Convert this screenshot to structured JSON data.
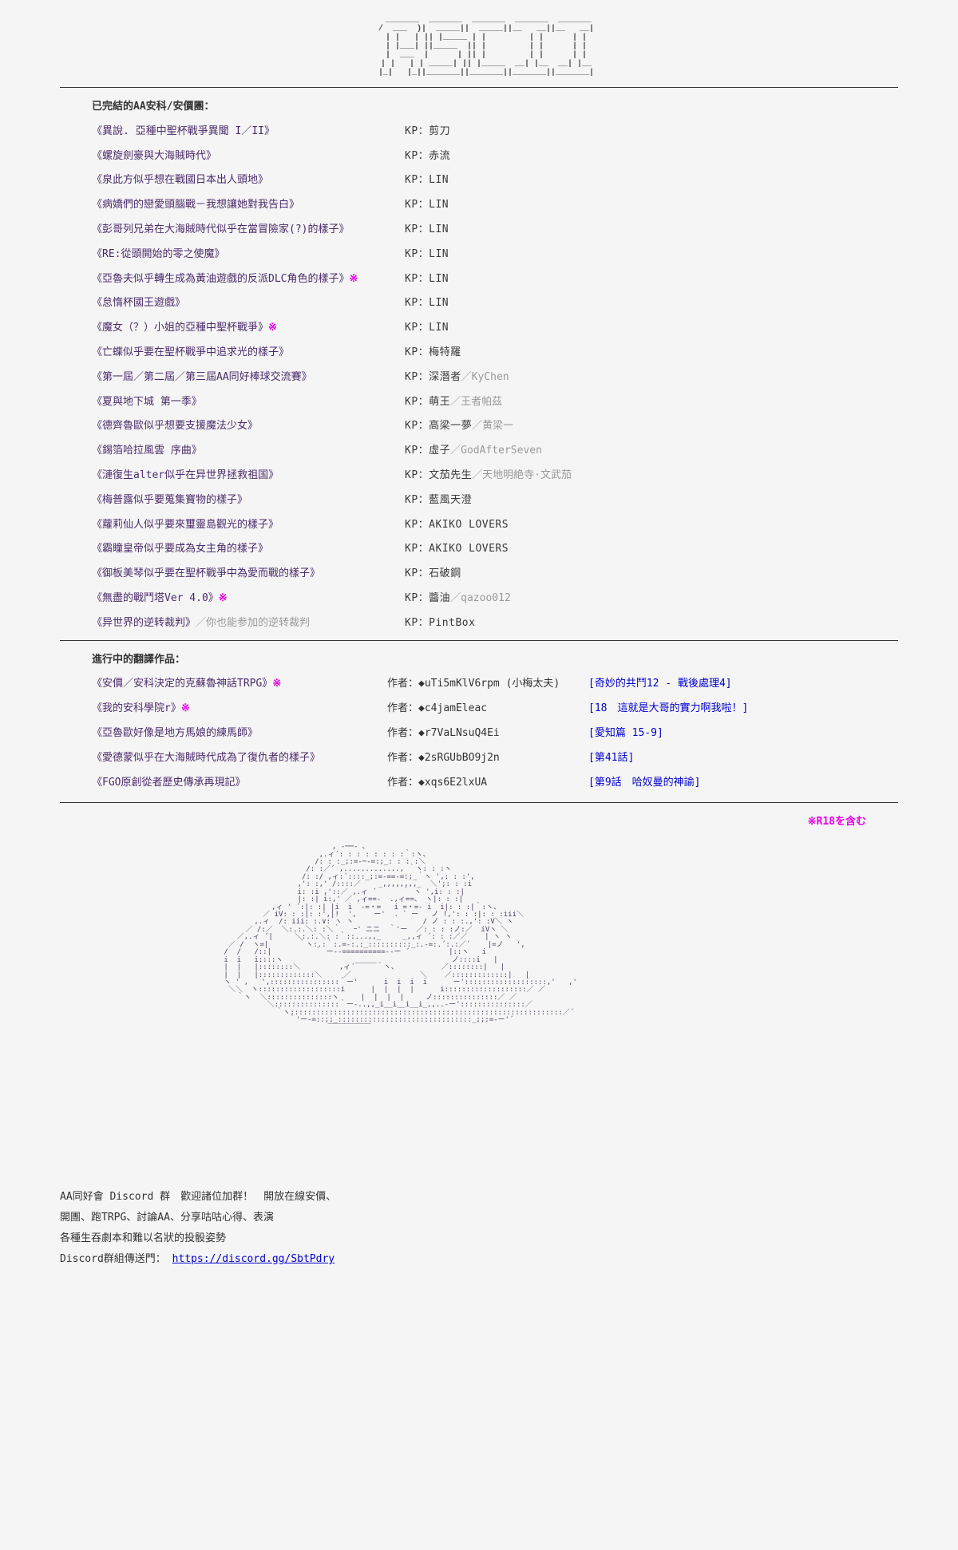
{
  "ascii_title": "    _______  _______  _______  _______  _______\n   /  ___  )|  _____||  _____||__   __||__   __|\n   | |   | || |_____ | |         | |      | |\n   | |___| ||_____  || |         | |      | |\n   |  ___  |      | || |         | |      | |\n   | |   | | _____| || |_____  __| |__  __| |__\n   |_|   |_||_______||_______||_______||_______|",
  "completed_header": "已完結的AA安科/安價團：",
  "completed": [
    {
      "title": "《異說. 亞種中聖杯戰爭異聞 I／II》",
      "kp": "剪刀"
    },
    {
      "title": "《螺旋劍豪與大海賊時代》",
      "kp": "赤流"
    },
    {
      "title": "《泉此方似乎想在戰國日本出人頭地》",
      "kp": "LIN"
    },
    {
      "title": "《病嬌們的戀愛頭腦戰－我想讓她對我告白》",
      "kp": "LIN"
    },
    {
      "title": "《彭哥列兄弟在大海賊時代似乎在當冒險家(?)的樣子》",
      "kp": "LIN"
    },
    {
      "title": "《RE:從頭開始的零之使魔》",
      "kp": "LIN"
    },
    {
      "title": "《亞魯夫似乎轉生成為黃油遊戲的反派DLC角色的樣子》",
      "star": true,
      "kp": "LIN"
    },
    {
      "title": "《怠惰杯國王遊戲》",
      "kp": "LIN"
    },
    {
      "title": "《魔女（？）小姐的亞種中聖杯戰爭》",
      "star": true,
      "kp": "LIN"
    },
    {
      "title": "《亡蝶似乎要在聖杯戰爭中追求光的樣子》",
      "kp": "梅特羅"
    },
    {
      "title": "《第一屆／第二屆／第三屆AA同好棒球交流賽》",
      "kp": "深潛者",
      "kp_alt": "／KyChen"
    },
    {
      "title": "《夏與地下城 第一季》",
      "kp": "萌王",
      "kp_alt": "／王者帕茲"
    },
    {
      "title": "《德齊魯歐似乎想要支援魔法少女》",
      "kp": "高梁一夢",
      "kp_alt": "／黄梁一"
    },
    {
      "title": "《錫箔哈拉風雲 序曲》",
      "kp": "虛子",
      "kp_alt": "／GodAfterSeven"
    },
    {
      "title": "《漣復生alter似乎在异世界拯救祖国》",
      "kp": "文茄先生",
      "kp_alt": "／天地明絶寺·文武茄"
    },
    {
      "title": "《梅普露似乎要蒐集寶物的樣子》",
      "kp": "藍風天澄"
    },
    {
      "title": "《蘿莉仙人似乎要來璽靈島觀光的樣子》",
      "kp": "AKIKO LOVERS"
    },
    {
      "title": "《霸瞳皇帝似乎要成為女主角的樣子》",
      "kp": "AKIKO LOVERS"
    },
    {
      "title": "《御板美琴似乎要在聖杯戰爭中為愛而戰的樣子》",
      "kp": "石破鋼"
    },
    {
      "title": "《無盡的戰鬥塔Ver 4.0》",
      "star": true,
      "kp": "醬油",
      "kp_alt": "／qazoo012"
    },
    {
      "title": "《异世界的逆转裁判》",
      "subtitle": "／你也能参加的逆转裁判",
      "kp": "PintBox"
    }
  ],
  "inprogress_header": "進行中的翻譯作品：",
  "inprogress": [
    {
      "title": "《安價／安科決定的克蘇魯神話TRPG》",
      "star": true,
      "author": "uTi5mKlV6rpm",
      "author_note": " (小梅太夫)",
      "link": "[奇妙的共鬥12 - 戰後處理4]"
    },
    {
      "title": "《我的安科學院r》",
      "star": true,
      "author": "c4jamEleac",
      "link": "[18　這就是大哥的實力啊我啦！]"
    },
    {
      "title": "《亞魯歐好像是地方馬娘的練馬師》",
      "author": "r7VaLNsuQ4Ei",
      "link": "[愛知篇 15-9]"
    },
    {
      "title": "《愛德蒙似乎在大海賊時代成為了復仇者的樣子》",
      "author": "2sRGUbBO9j2n",
      "link": "[第41話]"
    },
    {
      "title": "《FGO原創從者歷史傳承再現記》",
      "author": "xqs6E2lxUA",
      "link": "[第9話　哈奴曼的神諭]"
    }
  ],
  "r18_note": "※R18を含む",
  "discord": {
    "line1": "AA同好會 Discord 群　歡迎諸位加群！　開放在線安價、",
    "line2": "開團、跑TRPG、討論AA、分享咕咕心得、表演",
    "line3": "各種生吞劇本和難以名狀的投骰姿勢",
    "label": "Discord群組傳送門：",
    "url": "https://discord.gg/SbtPdry"
  },
  "ascii_art": "                          , -──- ､\n                       ,.ィ´: : : : : : : :｀:ヽ、\n                      /: : :_;:=-─-=:;_: : : :＼\n                    /: :／´ ,............., ｀ヽ: : :ヽ\n                   /: :/ ,ィ:´::::_;:=-==-=:;_｀ヽ ',: : :',\n                  ,': :,' /::::／    _,,,,,,,,_  ＼';: : :i\n                  i: :i ,'::／ ,.ィ ´      ｀ ヽ ',i: : :|\n                  |: :| i:,' ／ ,ィ==-  .,ィ==、 ヽ|: : :|\n            ,ィ ' ´:|: :| |i  i  -=・=   i =・=- i  i|: : :|｀:ヽ、\n          ／ iV: : :|: :',|!  ',    ー'  . ` ー   ノ !,': : :|: : :iii＼\n        ,.ィ  /: iii: :.∨: ヽ ヽ                / ノ : : :.,': :V＼ ヽ\n      ／ /:／  ＼:.:.＼: :＼｀   ｰ' ニニ  ｀'ー  ／: : : :ノ:／  iVヽ ＼\n    ／,.ィ ´|     ＼:.:.＼: :｀::...,,_     _,,ィ ´: : :／／    | ヽ ヽ\n  ／ /  ヽ=|       ｀ヽ:.:｀:.=-:.:_::::::::::_:.-=:.´:.:／´    |=ノ   ',\n /  /   /::|          ｀ ー--==========--ー ´         |::ヽ   i\n i  i   i::::ヽ                                       ノ::::i   |\n |  |   |::::::::＼         ,ィ´￣￣￣｀ヽ、          ／::::::::|   |\n |  |   |:::::::::::::＼     ／                ＼    ／:::::::::::::|   |\n ヽ ' ,   ',::::::::::::::::｀ー'      i  i  i  i      ー':::::::::::::::::::,'   ,'\n  ＼＼  ヽ:::::::::::::::::::i      |  |  |  |      i:::::::::::::::::::／ ／\n    ｀ヽ  ＼:::::::::::::::ヽ     |  |  |  |     ノ:::::::::::::::／ ／\n           ＼:::::::::::::::｀ー-..,,_i__i__i__i_,,..-ー':::::::::::::::／\n             ｀ヽ:::::::::::::::::::::::::::::::::::::::::::::::::::::::::::::::／´\n                ｀'ー-=::;;_:::::::::::::::::::::::::::::::_;;:=-ー'´\n                         ￣￣￣￣￣￣"
}
